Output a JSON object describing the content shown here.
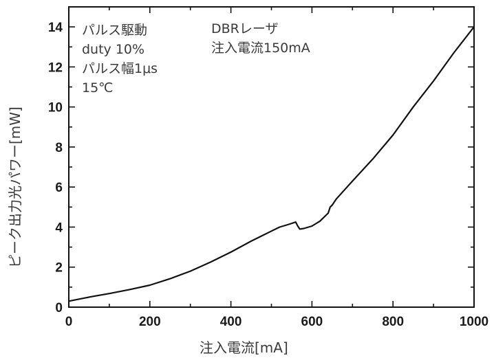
{
  "chart_data": {
    "type": "line",
    "xlabel": "注入電流[mA]",
    "ylabel": "ピーク出力光パワー[mW]",
    "xlim": [
      0,
      1000
    ],
    "ylim": [
      0,
      15
    ],
    "xticks": [
      0,
      200,
      400,
      600,
      800,
      1000
    ],
    "xtick_labels": [
      "0",
      "200",
      "400",
      "600",
      "800",
      "1000"
    ],
    "yticks": [
      0,
      2,
      4,
      6,
      8,
      10,
      12,
      14
    ],
    "ytick_labels": [
      "0",
      "2",
      "4",
      "6",
      "8",
      "10",
      "12",
      "14"
    ],
    "grid": false,
    "annotations_left": [
      "パルス駆動",
      "duty 10%",
      "パルス幅1μs",
      "15℃"
    ],
    "annotations_right": [
      "DBRレーザ",
      "注入電流150mA"
    ],
    "series": [
      {
        "x": [
          0,
          20,
          40,
          60,
          100,
          150,
          200,
          250,
          300,
          350,
          400,
          450,
          500,
          520,
          540,
          560,
          565,
          570,
          580,
          600,
          620,
          640,
          645,
          650,
          660,
          700,
          750,
          800,
          850,
          900,
          950,
          1000
        ],
        "y": [
          0.3,
          0.38,
          0.46,
          0.54,
          0.68,
          0.88,
          1.1,
          1.42,
          1.8,
          2.25,
          2.75,
          3.3,
          3.8,
          4.0,
          4.12,
          4.25,
          4.05,
          3.9,
          3.93,
          4.05,
          4.3,
          4.7,
          5.0,
          5.1,
          5.4,
          6.3,
          7.4,
          8.6,
          10.0,
          11.3,
          12.7,
          14.0
        ]
      }
    ]
  },
  "colors": {
    "line": "#111111",
    "axis": "#111111"
  }
}
